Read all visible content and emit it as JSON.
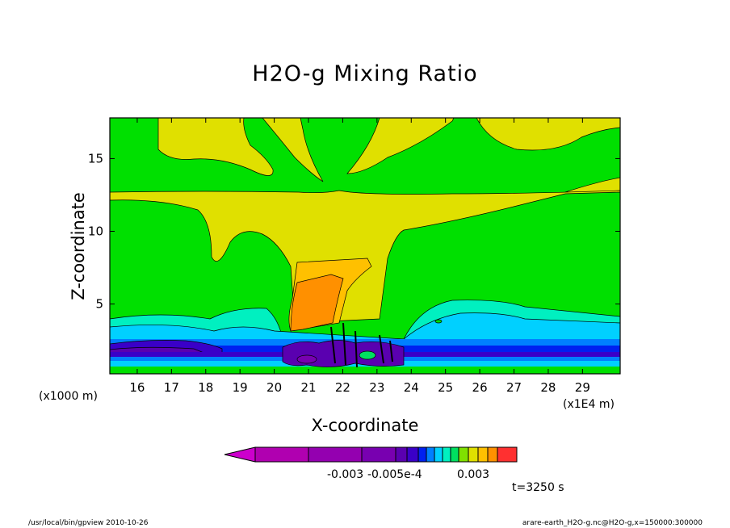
{
  "window": {
    "footer_left": "/usr/local/bin/gpview  2010-10-26",
    "footer_right": "arare-earth_H2O-g.nc@H2O-g,x=150000:300000"
  },
  "chart_data": {
    "type": "heatmap",
    "title": "H2O-g Mixing Ratio",
    "xlabel": "X-coordinate",
    "ylabel": "Z-coordinate",
    "x_unit_left": "(x1000 m)",
    "x_unit_right": "(x1E4 m)",
    "xlim": [
      15.2,
      30.1
    ],
    "ylim": [
      0.2,
      17.8
    ],
    "xticks": [
      "16",
      "17",
      "18",
      "19",
      "20",
      "21",
      "22",
      "23",
      "24",
      "25",
      "26",
      "27",
      "28",
      "29"
    ],
    "yticks": [
      "5",
      "10",
      "15"
    ],
    "colorbar": {
      "colors": [
        "#cc00cc",
        "#b000b0",
        "#9400b0",
        "#7800b0",
        "#5a00b0",
        "#3a00c8",
        "#0020f0",
        "#0080ff",
        "#00d0ff",
        "#00f0c0",
        "#00e060",
        "#80e000",
        "#e0e000",
        "#ffc000",
        "#ff9000",
        "#ff3030"
      ],
      "labels": [
        "-0.003",
        "-0.005e-4",
        "0.003"
      ]
    },
    "time_label": "t=3250 s"
  }
}
